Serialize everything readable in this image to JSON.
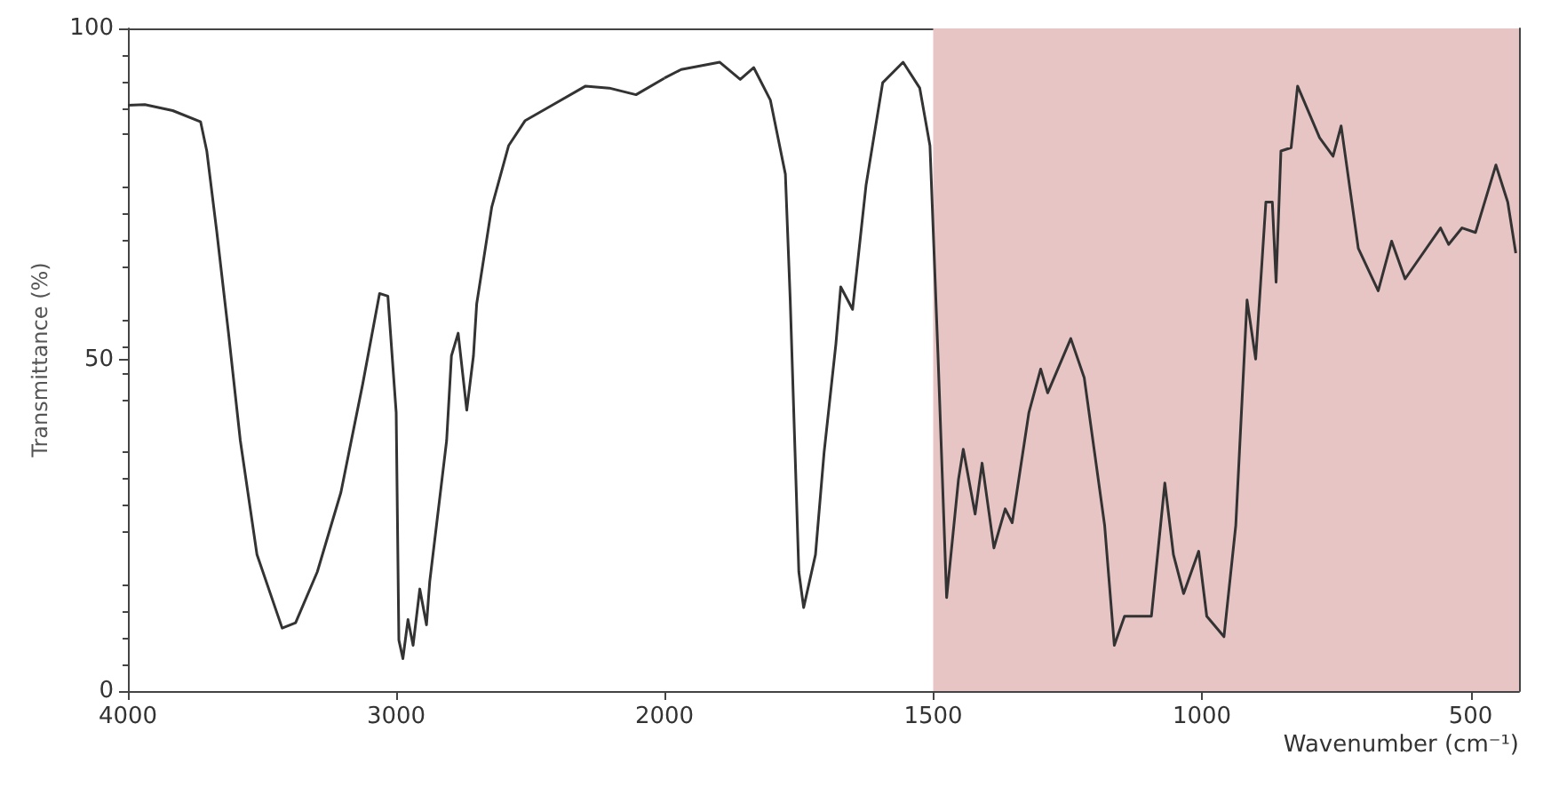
{
  "chart_data": [
    {
      "type": "line",
      "ylabel": "Transmittance (%)",
      "xlim": [
        4000,
        2000
      ],
      "xticks": [
        4000,
        3000,
        2000
      ],
      "ylim": [
        0,
        100
      ],
      "yticks": [
        0,
        50,
        100
      ],
      "grid": false,
      "marker": "none",
      "line_style": "solid",
      "x": [
        4000,
        3937,
        3833,
        3729,
        3706,
        3669,
        3625,
        3581,
        3519,
        3425,
        3375,
        3294,
        3206,
        3125,
        3062,
        3031,
        3000,
        2990,
        2975,
        2956,
        2937,
        2912,
        2887,
        2875,
        2812,
        2794,
        2769,
        2737,
        2712,
        2700,
        2644,
        2581,
        2519,
        2419,
        2294,
        2206,
        2106,
        2000
      ],
      "series": [
        {
          "color": "#333333",
          "values": [
            88.4,
            88.5,
            87.6,
            85.9,
            81.5,
            69.4,
            54,
            37.8,
            20.6,
            9.5,
            10.3,
            18,
            30,
            46.3,
            60,
            59.6,
            42,
            7.7,
            4.9,
            10.8,
            6.9,
            15.4,
            10,
            16.5,
            37.8,
            50.6,
            54,
            42.4,
            50.6,
            58.4,
            73,
            82.3,
            86.1,
            88.4,
            91.3,
            91,
            90,
            92.5
          ]
        }
      ]
    },
    {
      "type": "line",
      "xlabel": "Wavenumber (cm⁻¹)",
      "xlim": [
        2000,
        410
      ],
      "xticks": [
        1500,
        1000,
        500
      ],
      "ylim": [
        0,
        100
      ],
      "yticks": [
        0,
        50,
        100
      ],
      "tick_labels": "x",
      "grid": false,
      "marker": "none",
      "line_style": "solid",
      "bands": [
        {
          "axis": "x",
          "from": 1500,
          "to": 410,
          "color": "#e8c5c5"
        }
      ],
      "x": [
        2000,
        1969,
        1897,
        1859,
        1834,
        1803,
        1775,
        1766,
        1756,
        1750,
        1741,
        1719,
        1703,
        1681,
        1672,
        1650,
        1625,
        1594,
        1556,
        1525,
        1506,
        1491,
        1475,
        1453,
        1444,
        1422,
        1409,
        1387,
        1366,
        1353,
        1322,
        1300,
        1287,
        1244,
        1219,
        1181,
        1163,
        1144,
        1094,
        1069,
        1053,
        1034,
        1006,
        991,
        959,
        937,
        916,
        900,
        881,
        869,
        862,
        853,
        834,
        822,
        781,
        756,
        741,
        709,
        672,
        647,
        622,
        556,
        541,
        516,
        491,
        453,
        431,
        416
      ],
      "series": [
        {
          "color": "#333333",
          "values": [
            92.5,
            93.8,
            94.9,
            92.3,
            94.1,
            89.2,
            78,
            59,
            33.4,
            18,
            12.6,
            20.6,
            36,
            52.4,
            61,
            57.6,
            76.3,
            91.8,
            94.9,
            91,
            82.3,
            50.6,
            14.1,
            31.9,
            36.5,
            26.7,
            34.4,
            21.6,
            27.5,
            25.4,
            42,
            48.6,
            45,
            53.2,
            47.3,
            25,
            6.9,
            11.3,
            11.3,
            31.4,
            20.6,
            14.7,
            21.1,
            11.3,
            8.2,
            25,
            59,
            50.1,
            73.8,
            73.8,
            61.7,
            81.5,
            82,
            91.3,
            83.5,
            80.7,
            85.3,
            66.8,
            60.4,
            67.9,
            62.2,
            69.9,
            67.4,
            69.9,
            69.2,
            79.4,
            73.8,
            66.1
          ]
        }
      ]
    }
  ]
}
